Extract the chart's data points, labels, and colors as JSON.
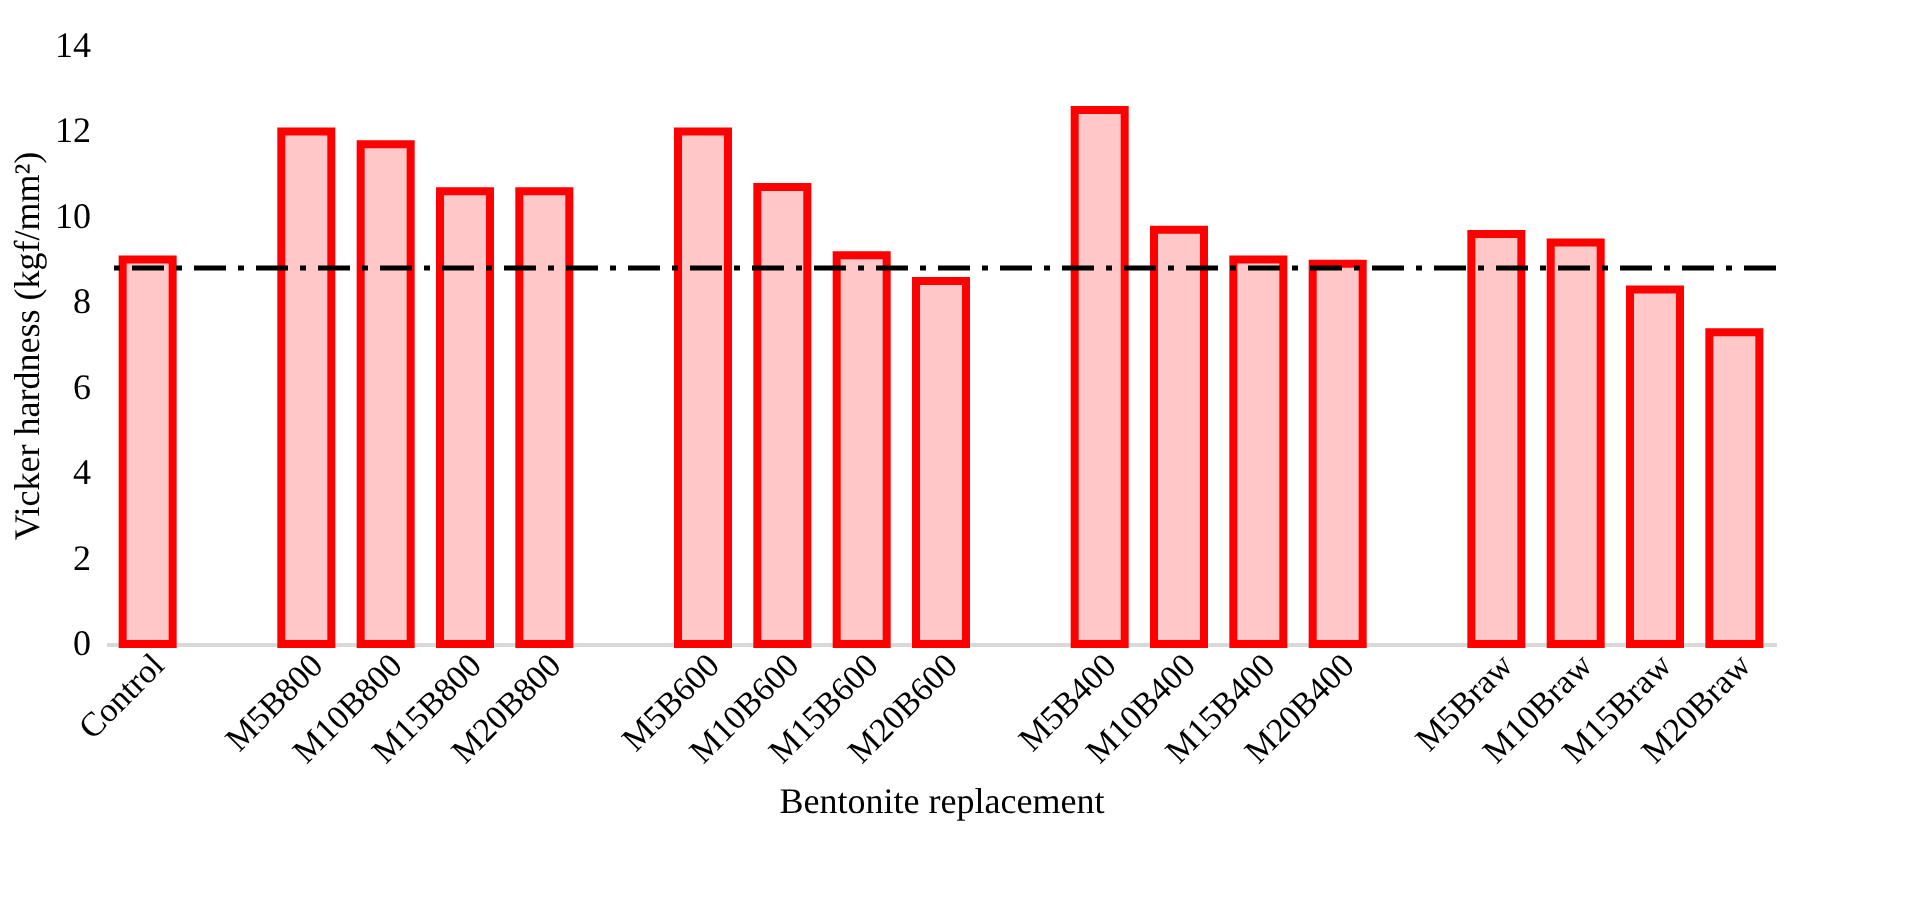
{
  "chart_data": {
    "type": "bar",
    "xlabel": "Bentonite replacement",
    "ylabel": "Vicker hardness (kgf/mm²)",
    "categories": [
      "Control",
      null,
      "M5B800",
      "M10B800",
      "M15B800",
      "M20B800",
      null,
      "M5B600",
      "M10B600",
      "M15B600",
      "M20B600",
      null,
      "M5B400",
      "M10B400",
      "M15B400",
      "M20B400",
      null,
      "M5Braw",
      "M10Braw",
      "M15Braw",
      "M20Braw"
    ],
    "values": [
      9.0,
      null,
      12.0,
      11.7,
      10.6,
      10.6,
      null,
      12.0,
      10.7,
      9.1,
      8.5,
      null,
      12.5,
      9.7,
      9.0,
      8.9,
      null,
      9.6,
      9.4,
      8.3,
      7.3
    ],
    "color": "#ff0000",
    "ylim": [
      0,
      14
    ],
    "yticks": [
      0,
      2,
      4,
      6,
      8,
      10,
      12,
      14
    ],
    "ref_lines": [
      {
        "axis": "y",
        "value": 8.8,
        "color": "#000000",
        "line_style": "dashed"
      }
    ],
    "grid": false
  }
}
